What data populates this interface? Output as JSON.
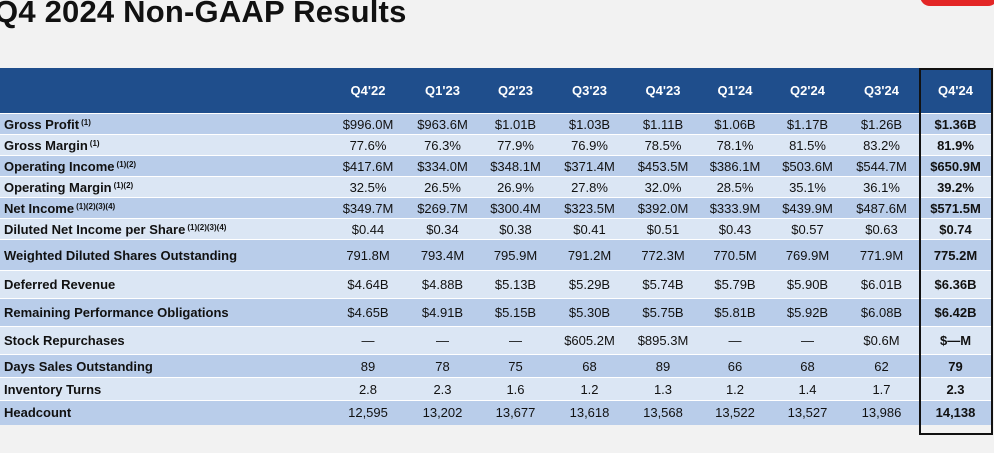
{
  "title": "Q4 2024 Non-GAAP Results",
  "columns": [
    "Q4'22",
    "Q1'23",
    "Q2'23",
    "Q3'23",
    "Q4'23",
    "Q1'24",
    "Q2'24",
    "Q3'24",
    "Q4'24"
  ],
  "rows": [
    {
      "label": "Gross Profit",
      "note": "(1)",
      "values": [
        "$996.0M",
        "$963.6M",
        "$1.01B",
        "$1.03B",
        "$1.11B",
        "$1.06B",
        "$1.17B",
        "$1.26B",
        "$1.36B"
      ]
    },
    {
      "label": "Gross Margin",
      "note": "(1)",
      "values": [
        "77.6%",
        "76.3%",
        "77.9%",
        "76.9%",
        "78.5%",
        "78.1%",
        "81.5%",
        "83.2%",
        "81.9%"
      ]
    },
    {
      "label": "Operating Income",
      "note": "(1)(2)",
      "values": [
        "$417.6M",
        "$334.0M",
        "$348.1M",
        "$371.4M",
        "$453.5M",
        "$386.1M",
        "$503.6M",
        "$544.7M",
        "$650.9M"
      ]
    },
    {
      "label": "Operating Margin",
      "note": "(1)(2)",
      "values": [
        "32.5%",
        "26.5%",
        "26.9%",
        "27.8%",
        "32.0%",
        "28.5%",
        "35.1%",
        "36.1%",
        "39.2%"
      ]
    },
    {
      "label": "Net Income",
      "note": "(1)(2)(3)(4)",
      "values": [
        "$349.7M",
        "$269.7M",
        "$300.4M",
        "$323.5M",
        "$392.0M",
        "$333.9M",
        "$439.9M",
        "$487.6M",
        "$571.5M"
      ]
    },
    {
      "label": "Diluted Net Income per Share",
      "note": "(1)(2)(3)(4)",
      "values": [
        "$0.44",
        "$0.34",
        "$0.38",
        "$0.41",
        "$0.51",
        "$0.43",
        "$0.57",
        "$0.63",
        "$0.74"
      ]
    },
    {
      "label": "Weighted Diluted Shares Outstanding",
      "note": "",
      "values": [
        "791.8M",
        "793.4M",
        "795.9M",
        "791.2M",
        "772.3M",
        "770.5M",
        "769.9M",
        "771.9M",
        "775.2M"
      ]
    },
    {
      "label": "Deferred Revenue",
      "note": "",
      "values": [
        "$4.64B",
        "$4.88B",
        "$5.13B",
        "$5.29B",
        "$5.74B",
        "$5.79B",
        "$5.90B",
        "$6.01B",
        "$6.36B"
      ]
    },
    {
      "label": "Remaining Performance Obligations",
      "note": "",
      "values": [
        "$4.65B",
        "$4.91B",
        "$5.15B",
        "$5.30B",
        "$5.75B",
        "$5.81B",
        "$5.92B",
        "$6.08B",
        "$6.42B"
      ]
    },
    {
      "label": "Stock Repurchases",
      "note": "",
      "values": [
        "—",
        "—",
        "—",
        "$605.2M",
        "$895.3M",
        "—",
        "—",
        "$0.6M",
        "$—M"
      ]
    },
    {
      "label": "Days Sales Outstanding",
      "note": "",
      "values": [
        "89",
        "78",
        "75",
        "68",
        "89",
        "66",
        "68",
        "62",
        "79"
      ]
    },
    {
      "label": "Inventory Turns",
      "note": "",
      "values": [
        "2.8",
        "2.3",
        "1.6",
        "1.2",
        "1.3",
        "1.2",
        "1.4",
        "1.7",
        "2.3"
      ]
    },
    {
      "label": "Headcount",
      "note": "",
      "values": [
        "12,595",
        "13,202",
        "13,677",
        "13,618",
        "13,568",
        "13,522",
        "13,527",
        "13,986",
        "14,138"
      ]
    }
  ],
  "accent_color": "#e32626",
  "header_color": "#1f4e8c"
}
